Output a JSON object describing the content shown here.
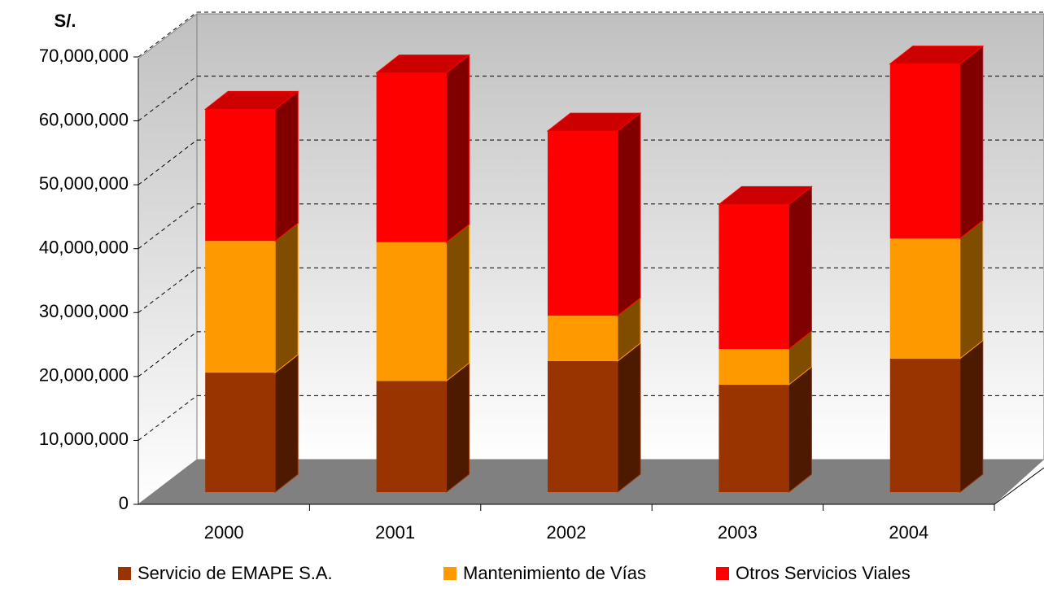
{
  "chart_data": {
    "type": "bar3d",
    "stacked": true,
    "y_axis_label": "S/.",
    "categories": [
      "2000",
      "2001",
      "2002",
      "2003",
      "2004"
    ],
    "series": [
      {
        "name": "Servicio de EMAPE S.A.",
        "color": "#993300",
        "values": [
          18700000,
          17400000,
          20500000,
          16800000,
          20900000
        ]
      },
      {
        "name": "Mantenimiento de Vías",
        "color": "#ff9900",
        "values": [
          20600000,
          21700000,
          7100000,
          5600000,
          18800000
        ]
      },
      {
        "name": "Otros Servicios Viales",
        "color": "#ff0000",
        "values": [
          20600000,
          26500000,
          28900000,
          22600000,
          27300000
        ]
      }
    ],
    "ylim": [
      0,
      70000000
    ],
    "yticks": [
      0,
      {
        "value": 10000000,
        "label": "10,000,000"
      },
      {
        "value": 20000000,
        "label": "20,000,000"
      },
      {
        "value": 30000000,
        "label": "30,000,000"
      },
      {
        "value": 40000000,
        "label": "40,000,000"
      },
      {
        "value": 50000000,
        "label": "50,000,000"
      },
      {
        "value": 60000000,
        "label": "60,000,000"
      },
      {
        "value": 70000000,
        "label": "70,000,000"
      }
    ],
    "grid": true,
    "legend": "bottom"
  }
}
